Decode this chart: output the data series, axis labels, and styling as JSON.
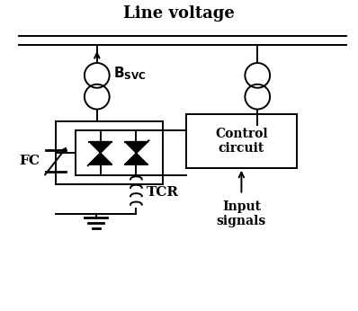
{
  "title": "Line voltage",
  "bg_color": "#ffffff",
  "line_color": "#000000",
  "title_fontsize": 13,
  "label_fontsize": 12,
  "fig_width": 3.98,
  "fig_height": 3.46,
  "labels": {
    "bsvc_main": "B",
    "bsvc_sub": "SVC",
    "fc": "FC",
    "tcr": "TCR",
    "control": "Control\ncircuit",
    "input": "Input\nsignals"
  }
}
